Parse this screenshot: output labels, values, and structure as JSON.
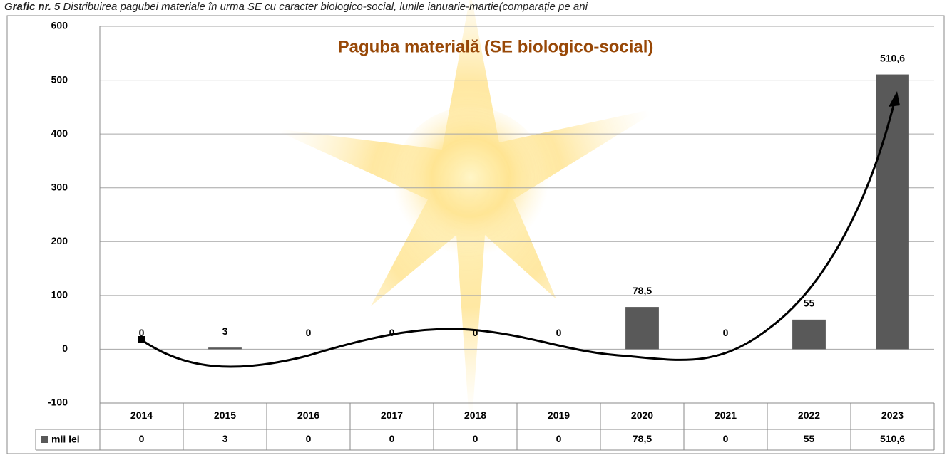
{
  "caption_label": "Grafic nr. 5",
  "caption": "Distribuirea pagubei materiale în urma SE cu caracter biologico-social, lunile ianuarie-martie(comparație pe ani",
  "chart_data": {
    "type": "bar",
    "title": "Paguba materială (SE biologico-social)",
    "categories": [
      "2014",
      "2015",
      "2016",
      "2017",
      "2018",
      "2019",
      "2020",
      "2021",
      "2022",
      "2023"
    ],
    "series": [
      {
        "name": "mii lei",
        "color": "#595959",
        "values": [
          0,
          3,
          0,
          0,
          0,
          0,
          78.5,
          0,
          55,
          510.6
        ],
        "value_labels": [
          "0",
          "3",
          "0",
          "0",
          "0",
          "0",
          "78,5",
          "0",
          "55",
          "510,6"
        ]
      }
    ],
    "ylim": [
      -100,
      600
    ],
    "yticks": [
      -100,
      0,
      100,
      200,
      300,
      400,
      500,
      600
    ],
    "grid": true
  }
}
